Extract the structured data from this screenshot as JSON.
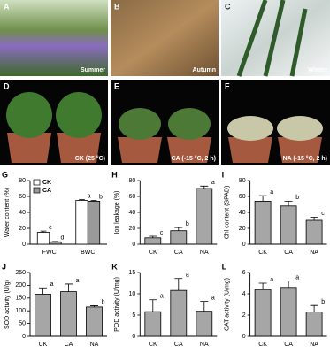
{
  "panels": [
    {
      "label": "A",
      "caption": "Summer"
    },
    {
      "label": "B",
      "caption": "Autumn"
    },
    {
      "label": "C",
      "caption": "Winter"
    },
    {
      "label": "D",
      "caption": "CK (25 °C)"
    },
    {
      "label": "E",
      "caption": "CA (-15 °C, 2 h)"
    },
    {
      "label": "F",
      "caption": "NA (-15 °C, 2 h)"
    }
  ],
  "chart_data": [
    {
      "type": "bar",
      "label": "G",
      "y_label": "Water content (%)",
      "categories": [
        "FWC",
        "BWC"
      ],
      "series": [
        {
          "name": "CK",
          "color": "#ffffff",
          "values": [
            15,
            55
          ],
          "errors": [
            1.5,
            1
          ],
          "letters": [
            "c",
            "a"
          ]
        },
        {
          "name": "CA",
          "color": "#9a9a9a",
          "values": [
            3,
            54
          ],
          "errors": [
            0.5,
            1
          ],
          "letters": [
            "d",
            "b"
          ]
        }
      ],
      "ylim": [
        0,
        80
      ],
      "yticks": [
        0,
        20,
        40,
        60,
        80
      ],
      "legend": "upper-left"
    },
    {
      "type": "bar",
      "label": "H",
      "y_label": "Ion leakage (%)",
      "categories": [
        "CK",
        "CA",
        "NA"
      ],
      "values": [
        8,
        17,
        70
      ],
      "errors": [
        2,
        4,
        3
      ],
      "letters": [
        "c",
        "b",
        "a"
      ],
      "color": "#a6a6a6",
      "ylim": [
        0,
        80
      ],
      "yticks": [
        0,
        20,
        40,
        60,
        80
      ]
    },
    {
      "type": "bar",
      "label": "I",
      "y_label": "Chl content (SPAD)",
      "categories": [
        "CK",
        "CA",
        "NA"
      ],
      "values": [
        54,
        48,
        30
      ],
      "errors": [
        7,
        6,
        4
      ],
      "letters": [
        "a",
        "b",
        "c"
      ],
      "color": "#a6a6a6",
      "ylim": [
        0,
        80
      ],
      "yticks": [
        0,
        20,
        40,
        60,
        80
      ]
    },
    {
      "type": "bar",
      "label": "J",
      "y_label": "SOD activity (U/g)",
      "categories": [
        "CK",
        "CA",
        "NA"
      ],
      "values": [
        165,
        175,
        115
      ],
      "errors": [
        25,
        30,
        5
      ],
      "letters": [
        "a",
        "a",
        "b"
      ],
      "color": "#a6a6a6",
      "ylim": [
        0,
        250
      ],
      "yticks": [
        0,
        50,
        100,
        150,
        200,
        250
      ]
    },
    {
      "type": "bar",
      "label": "K",
      "y_label": "POD activity (U/mg)",
      "categories": [
        "CK",
        "CA",
        "NA"
      ],
      "values": [
        5.8,
        10.8,
        5.9
      ],
      "errors": [
        2.8,
        2.8,
        2.3
      ],
      "letters": [
        "a",
        "a",
        "a"
      ],
      "color": "#a6a6a6",
      "ylim": [
        0,
        15
      ],
      "yticks": [
        0,
        5,
        10,
        15
      ]
    },
    {
      "type": "bar",
      "label": "L",
      "y_label": "CAT activity (U/mg)",
      "categories": [
        "CK",
        "CA",
        "NA"
      ],
      "values": [
        4.4,
        4.6,
        2.3
      ],
      "errors": [
        0.6,
        0.6,
        0.6
      ],
      "letters": [
        "a",
        "a",
        "b"
      ],
      "color": "#a6a6a6",
      "ylim": [
        0,
        6
      ],
      "yticks": [
        0,
        2,
        4,
        6
      ]
    }
  ]
}
